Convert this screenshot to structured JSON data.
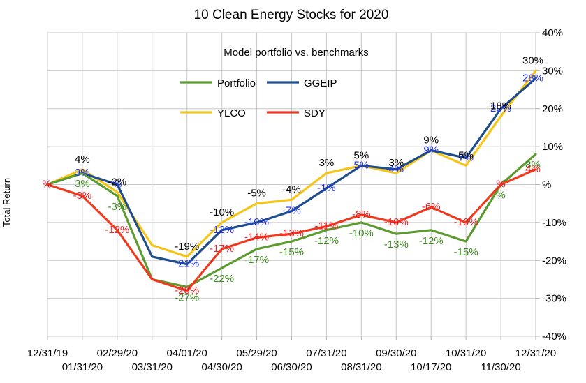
{
  "chart_data": {
    "type": "line",
    "title": "10 Clean Energy Stocks for 2020",
    "subtitle": "Model portfolio vs. benchmarks",
    "xlabel": "",
    "ylabel": "Total Return",
    "ylim": [
      -40,
      40
    ],
    "ytick_values": [
      -40,
      -30,
      -20,
      -10,
      0,
      10,
      20,
      30,
      40
    ],
    "ytick_labels": [
      "-40%",
      "-30%",
      "-20%",
      "-10%",
      "%",
      "10%",
      "20%",
      "30%",
      "40%"
    ],
    "y_axis_side": "right",
    "grid": true,
    "legend_position": "top-left inside plot",
    "x": [
      "12/31/19",
      "01/31/20",
      "02/29/20",
      "03/31/20",
      "04/01/20",
      "04/30/20",
      "05/29/20",
      "06/30/20",
      "07/31/20",
      "08/31/20",
      "09/30/20",
      "10/17/20",
      "10/31/20",
      "11/30/20",
      "12/31/20"
    ],
    "series": [
      {
        "name": "Portfolio",
        "color": "#5b9b2f",
        "values": [
          0,
          3,
          -3,
          -25,
          -27,
          -22,
          -17,
          -15,
          -12,
          -10,
          -13,
          -12,
          -15,
          0,
          8
        ],
        "labels": [
          "",
          "3%",
          "-3%",
          "",
          "-27%",
          "-22%",
          "-17%",
          "-15%",
          "-12%",
          "-10%",
          "-13%",
          "-12%",
          "-15%",
          "%",
          "8%"
        ]
      },
      {
        "name": "GGEIP",
        "color": "#1f4e8c",
        "values": [
          0,
          3,
          0,
          -19,
          -21,
          -12,
          -10,
          -7,
          -1,
          5,
          4,
          9,
          7,
          20,
          28
        ],
        "labels": [
          "%",
          "3%",
          "%",
          "",
          "-21%",
          "-12%",
          "-10%",
          "-7%",
          "-1%",
          "5%",
          "4%",
          "9%",
          "7%",
          "20%",
          "28%"
        ]
      },
      {
        "name": "YLCO",
        "color": "#f5c518",
        "values": [
          0,
          4,
          -2,
          -16,
          -19,
          -10,
          -5,
          -4,
          3,
          5,
          3,
          9,
          5,
          18,
          30
        ],
        "labels": [
          "",
          "4%",
          "-2%",
          "",
          "-19%",
          "-10%",
          "-5%",
          "-4%",
          "3%",
          "5%",
          "3%",
          "9%",
          "5%",
          "18%",
          "30%"
        ]
      },
      {
        "name": "SDY",
        "color": "#ee3a1f",
        "values": [
          0,
          -3,
          -12,
          -25,
          -28,
          -17,
          -14,
          -13,
          -11,
          -8,
          -10,
          -6,
          -10,
          0,
          4
        ],
        "labels": [
          "%",
          "-3%",
          "-12%",
          "",
          "-28%",
          "-17%",
          "-14%",
          "-13%",
          "-11%",
          "-8%",
          "-10%",
          "-6%",
          "-10%",
          "%",
          "4%"
        ]
      }
    ]
  }
}
